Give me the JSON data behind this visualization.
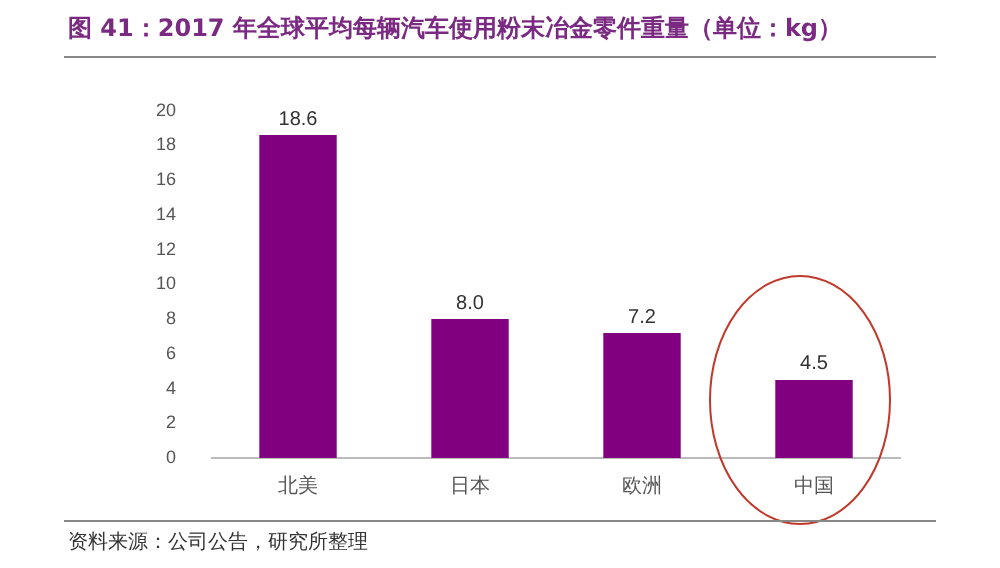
{
  "chart_data": {
    "type": "bar",
    "title": "图 41：2017 年全球平均每辆汽车使用粉末冶金零件重量（单位：kg）",
    "categories": [
      "北美",
      "日本",
      "欧洲",
      "中国"
    ],
    "values": [
      18.6,
      8.0,
      7.2,
      4.5
    ],
    "value_labels": [
      "18.6",
      "8.0",
      "7.2",
      "4.5"
    ],
    "color": "#800080",
    "ylim": [
      0,
      20
    ],
    "yticks": [
      0,
      2,
      4,
      6,
      8,
      10,
      12,
      14,
      16,
      18,
      20
    ],
    "grid": false,
    "legend": false,
    "annotations": [
      "资料来源：公司公告，研究所整理"
    ]
  }
}
